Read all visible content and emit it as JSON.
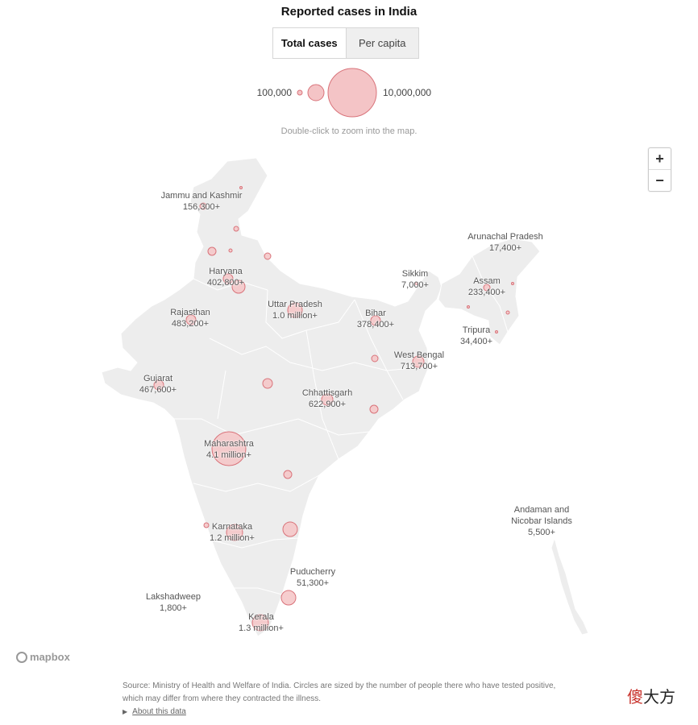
{
  "title": "Reported cases in India",
  "toggle": {
    "total_label": "Total cases",
    "per_capita_label": "Per capita",
    "selected": "Total cases"
  },
  "legend": {
    "min_label": "100,000",
    "max_label": "10,000,000"
  },
  "hint": "Double-click to zoom into the map.",
  "zoom": {
    "in_label": "+",
    "out_label": "−"
  },
  "colors": {
    "land": "#ededed",
    "bubble_fill": "#f4c4c6",
    "bubble_stroke": "#d9737a",
    "text": "#555555"
  },
  "states": [
    {
      "name": "Jammu and Kashmir",
      "value": "156,300+"
    },
    {
      "name": "Haryana",
      "value": "402,800+"
    },
    {
      "name": "Rajasthan",
      "value": "483,200+"
    },
    {
      "name": "Uttar Pradesh",
      "value": "1.0 million+"
    },
    {
      "name": "Bihar",
      "value": "378,400+"
    },
    {
      "name": "Sikkim",
      "value": "7,000+"
    },
    {
      "name": "Arunachal Pradesh",
      "value": "17,400+"
    },
    {
      "name": "Assam",
      "value": "233,400+"
    },
    {
      "name": "Tripura",
      "value": "34,400+"
    },
    {
      "name": "West Bengal",
      "value": "713,700+"
    },
    {
      "name": "Gujarat",
      "value": "467,600+"
    },
    {
      "name": "Chhattisgarh",
      "value": "622,900+"
    },
    {
      "name": "Maharashtra",
      "value": "4.1 million+"
    },
    {
      "name": "Karnataka",
      "value": "1.2 million+"
    },
    {
      "name": "Puducherry",
      "value": "51,300+"
    },
    {
      "name": "Lakshadweep",
      "value": "1,800+"
    },
    {
      "name": "Kerala",
      "value": "1.3 million+"
    },
    {
      "name": "Andaman and Nicobar Islands",
      "value": "5,500+"
    }
  ],
  "attribution": "mapbox",
  "source": "Source: Ministry of Health and Welfare of India. Circles are sized by the number of people there who have tested positive, which may differ from where they contracted the illness.",
  "about_link": "About this data",
  "watermark": {
    "first": "傻",
    "rest": "大方"
  }
}
